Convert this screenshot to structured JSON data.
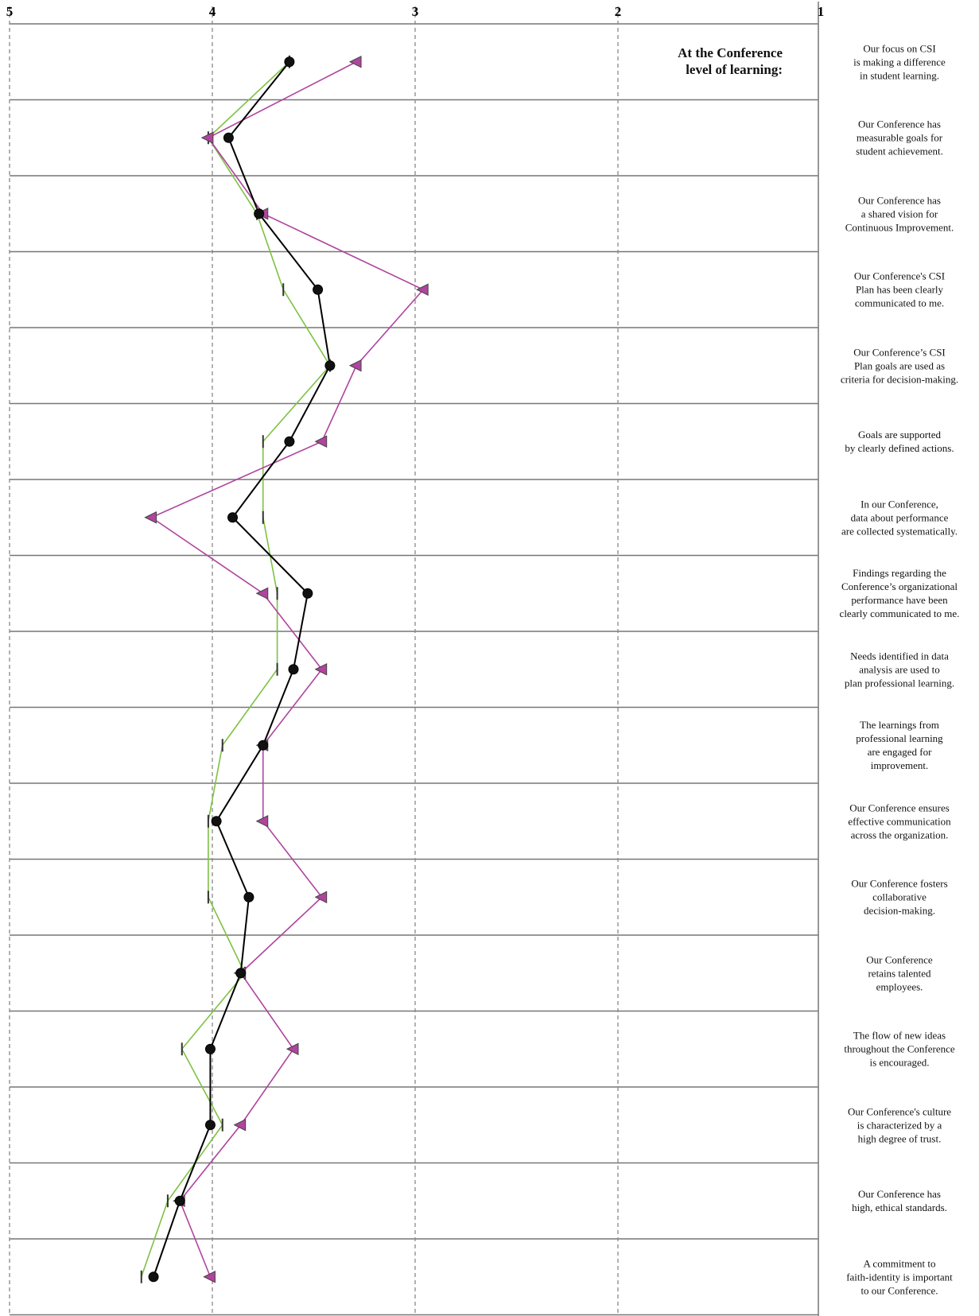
{
  "chart_data": {
    "type": "line",
    "orientation": "vertical-profile",
    "heading": [
      "At the Conference",
      "level of learning:"
    ],
    "x_ticks": [
      5,
      4,
      3,
      2,
      1
    ],
    "xlim": [
      5,
      1
    ],
    "grid": true,
    "categories": [
      "Our focus on CSI\nis making a difference\nin student learning.",
      "Our Conference has\nmeasurable goals for\nstudent achievement.",
      "Our Conference has\na shared vision for\nContinuous Improvement.",
      "Our Conference's CSI\nPlan has been clearly\ncommunicated to me.",
      "Our Conference’s CSI\nPlan goals are used as\ncriteria for decision-making.",
      "Goals are supported\nby clearly defined actions.",
      "In our Conference,\ndata about performance\nare collected systematically.",
      "Findings regarding the\nConference’s organizational\nperformance have been\nclearly communicated to me.",
      "Needs identified in data\nanalysis are used to\nplan professional learning.",
      "The learnings from\nprofessional learning\nare engaged for\nimprovement.",
      "Our Conference ensures\neffective communication\nacross the organization.",
      "Our Conference fosters\ncollaborative\ndecision-making.",
      "Our Conference\nretains talented\nemployees.",
      "The flow of new ideas\nthroughout the Conference\nis encouraged.",
      "Our Conference's culture\nis characterized by a\nhigh degree of trust.",
      "Our Conference has\nhigh, ethical standards.",
      "A commitment to\nfaith-identity is important\nto our Conference."
    ],
    "series": [
      {
        "marker": "circle",
        "color": "#000000",
        "values": [
          3.62,
          3.92,
          3.77,
          3.48,
          3.42,
          3.62,
          3.9,
          3.53,
          3.6,
          3.75,
          3.98,
          3.82,
          3.86,
          4.01,
          4.01,
          4.16,
          4.29
        ]
      },
      {
        "marker": "triangle",
        "color": "#b0449e",
        "values": [
          3.29,
          4.02,
          3.75,
          2.96,
          3.29,
          3.46,
          4.3,
          3.75,
          3.46,
          3.75,
          3.75,
          3.46,
          3.86,
          3.6,
          3.86,
          4.16,
          4.01
        ]
      },
      {
        "marker": "bar",
        "color": "#7ec242",
        "values": [
          3.62,
          4.02,
          3.78,
          3.65,
          3.42,
          3.75,
          3.75,
          3.68,
          3.68,
          3.95,
          4.02,
          4.02,
          3.84,
          4.15,
          3.95,
          4.22,
          4.35
        ]
      }
    ]
  }
}
